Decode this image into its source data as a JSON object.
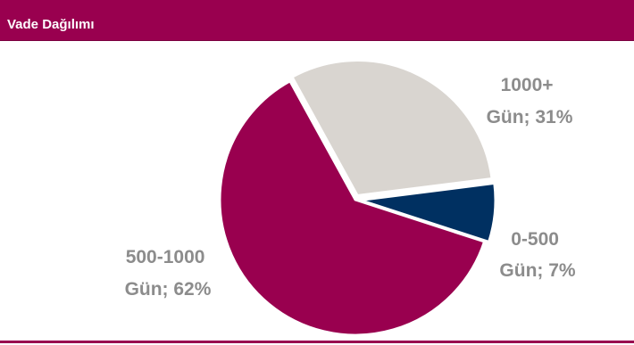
{
  "header": {
    "title": "Vade Dağılımı"
  },
  "colors": {
    "header_bg": "#99004f",
    "header_text": "#ffffff",
    "label_text": "#8c8c8c",
    "slice_separator": "#ffffff"
  },
  "chart_data": {
    "type": "pie",
    "title": "Vade Dağılımı",
    "slices": [
      {
        "name": "0-500 Gün",
        "value": 7,
        "color": "#003061",
        "label_lines": [
          "0-500",
          "Gün; 7%"
        ]
      },
      {
        "name": "500-1000 Gün",
        "value": 62,
        "color": "#99004f",
        "label_lines": [
          "500-1000",
          "Gün; 62%"
        ]
      },
      {
        "name": "1000+ Gün",
        "value": 31,
        "color": "#d9d5d0",
        "label_lines": [
          "1000+",
          "Gün; 31%"
        ]
      }
    ]
  }
}
